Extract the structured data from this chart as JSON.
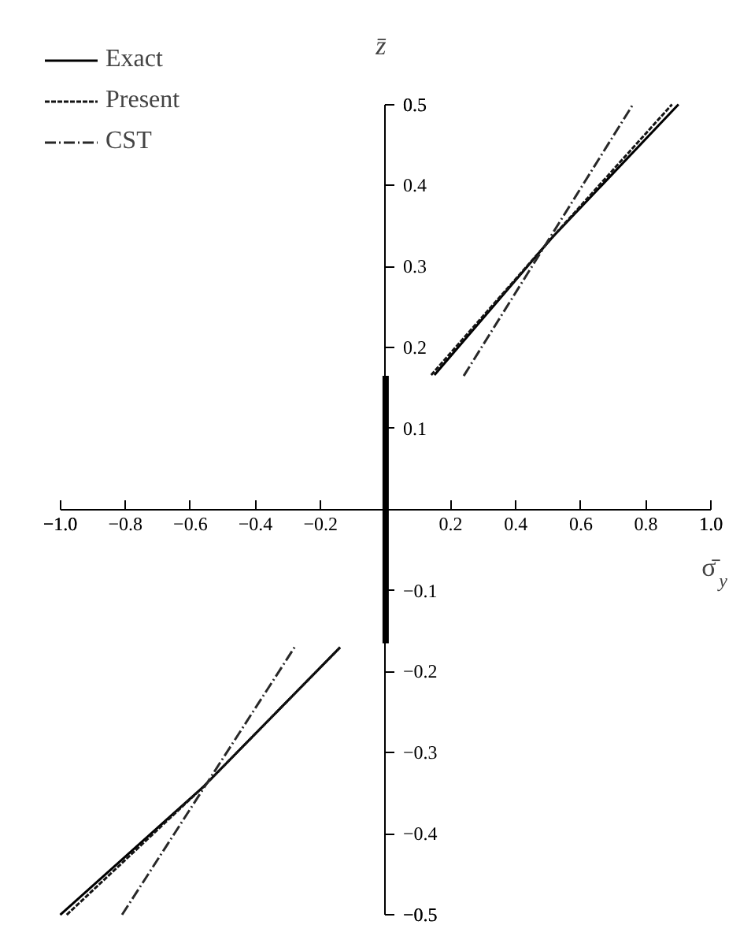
{
  "chart_data": {
    "type": "line",
    "xlabel": "σ̄$_{y}$",
    "ylabel": "z̄",
    "xlim": [
      -1.0,
      1.0
    ],
    "ylim": [
      -0.5,
      0.5
    ],
    "xticks": [
      {
        "value": -1.0,
        "label": "−1.0"
      },
      {
        "value": -0.8,
        "label": "−0.8"
      },
      {
        "value": -0.6,
        "label": "−0.6"
      },
      {
        "value": -0.4,
        "label": "−0.4"
      },
      {
        "value": -0.2,
        "label": "−0.2"
      },
      {
        "value": 0.2,
        "label": "0.2"
      },
      {
        "value": 0.4,
        "label": "0.4"
      },
      {
        "value": 0.6,
        "label": "0.6"
      },
      {
        "value": 0.8,
        "label": "0.8"
      },
      {
        "value": 1.0,
        "label": "1.0"
      }
    ],
    "yticks": [
      {
        "value": -0.5,
        "label": "−0.5"
      },
      {
        "value": -0.4,
        "label": "−0.4"
      },
      {
        "value": -0.3,
        "label": "−0.3"
      },
      {
        "value": -0.2,
        "label": "−0.2"
      },
      {
        "value": -0.1,
        "label": "−0.1"
      },
      0.1,
      0.2,
      0.3,
      0.4,
      0.5
    ],
    "grid": false,
    "legend": "top left",
    "series": [
      {
        "name": "Exact",
        "color": "#000000",
        "line_style": "solid",
        "x": [
          -1.0,
          -0.56,
          -0.14,
          null,
          0.15,
          0.51,
          0.9
        ],
        "values": [
          -0.5,
          -0.342,
          -0.17,
          null,
          0.166,
          0.335,
          0.5
        ]
      },
      {
        "name": "Present",
        "color": "#141414",
        "line_style": "dashed",
        "x": [
          -0.98,
          -0.56,
          -0.14,
          null,
          0.14,
          0.51,
          0.88
        ],
        "values": [
          -0.5,
          -0.342,
          -0.17,
          null,
          0.166,
          0.335,
          0.5
        ]
      },
      {
        "name": "CST",
        "color": "#282828",
        "line_style": "dashdot",
        "x": [
          -0.81,
          -0.28,
          null,
          0.24,
          0.76
        ],
        "values": [
          -0.5,
          -0.17,
          null,
          0.165,
          0.5
        ]
      },
      {
        "color": "#000000",
        "line_style": "solid",
        "x": [
          0,
          0
        ],
        "values": [
          -0.165,
          0.165
        ]
      }
    ]
  }
}
